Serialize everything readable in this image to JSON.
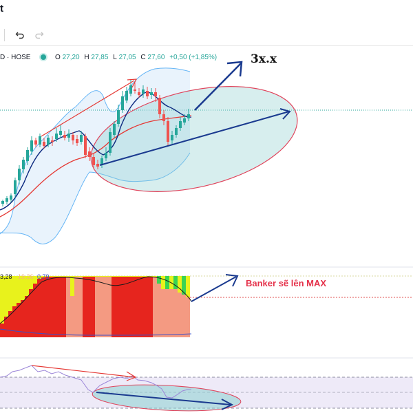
{
  "header": {
    "title_fragment": "t"
  },
  "toolbar": {
    "undo_icon": "undo-icon",
    "redo_icon": "redo-icon"
  },
  "legend": {
    "symbol": "D · HOSE",
    "open_key": "O",
    "open": "27,20",
    "high_key": "H",
    "high": "27,85",
    "low_key": "L",
    "low": "27,05",
    "close_key": "C",
    "close": "27,60",
    "change": "+0,50 (+1,85%)"
  },
  "annotations": {
    "target": "3x.x",
    "banker_note": "Banker sẽ lên MAX"
  },
  "oscillator": {
    "value_1": "3,28",
    "value_2": "19,26",
    "value_3": "0,79"
  },
  "colors": {
    "up": "#26a69a",
    "down": "#ef5350",
    "bb_fill": "#e3f0fb",
    "bb_line": "#64b5f6",
    "ma_fast": "#0d2a80",
    "ma_slow": "#e53935",
    "trend_arrow": "#1a3a8f",
    "ellipse_fill": "#8ccfcf",
    "ellipse_edge": "#e0445c",
    "banker_red": "#e6251e",
    "banker_pink": "#f49a82",
    "banker_yellow": "#e8f21c",
    "banker_green": "#39d353",
    "rsi_band": "#eeeaf8",
    "rsi_line": "#9c86d8"
  }
}
